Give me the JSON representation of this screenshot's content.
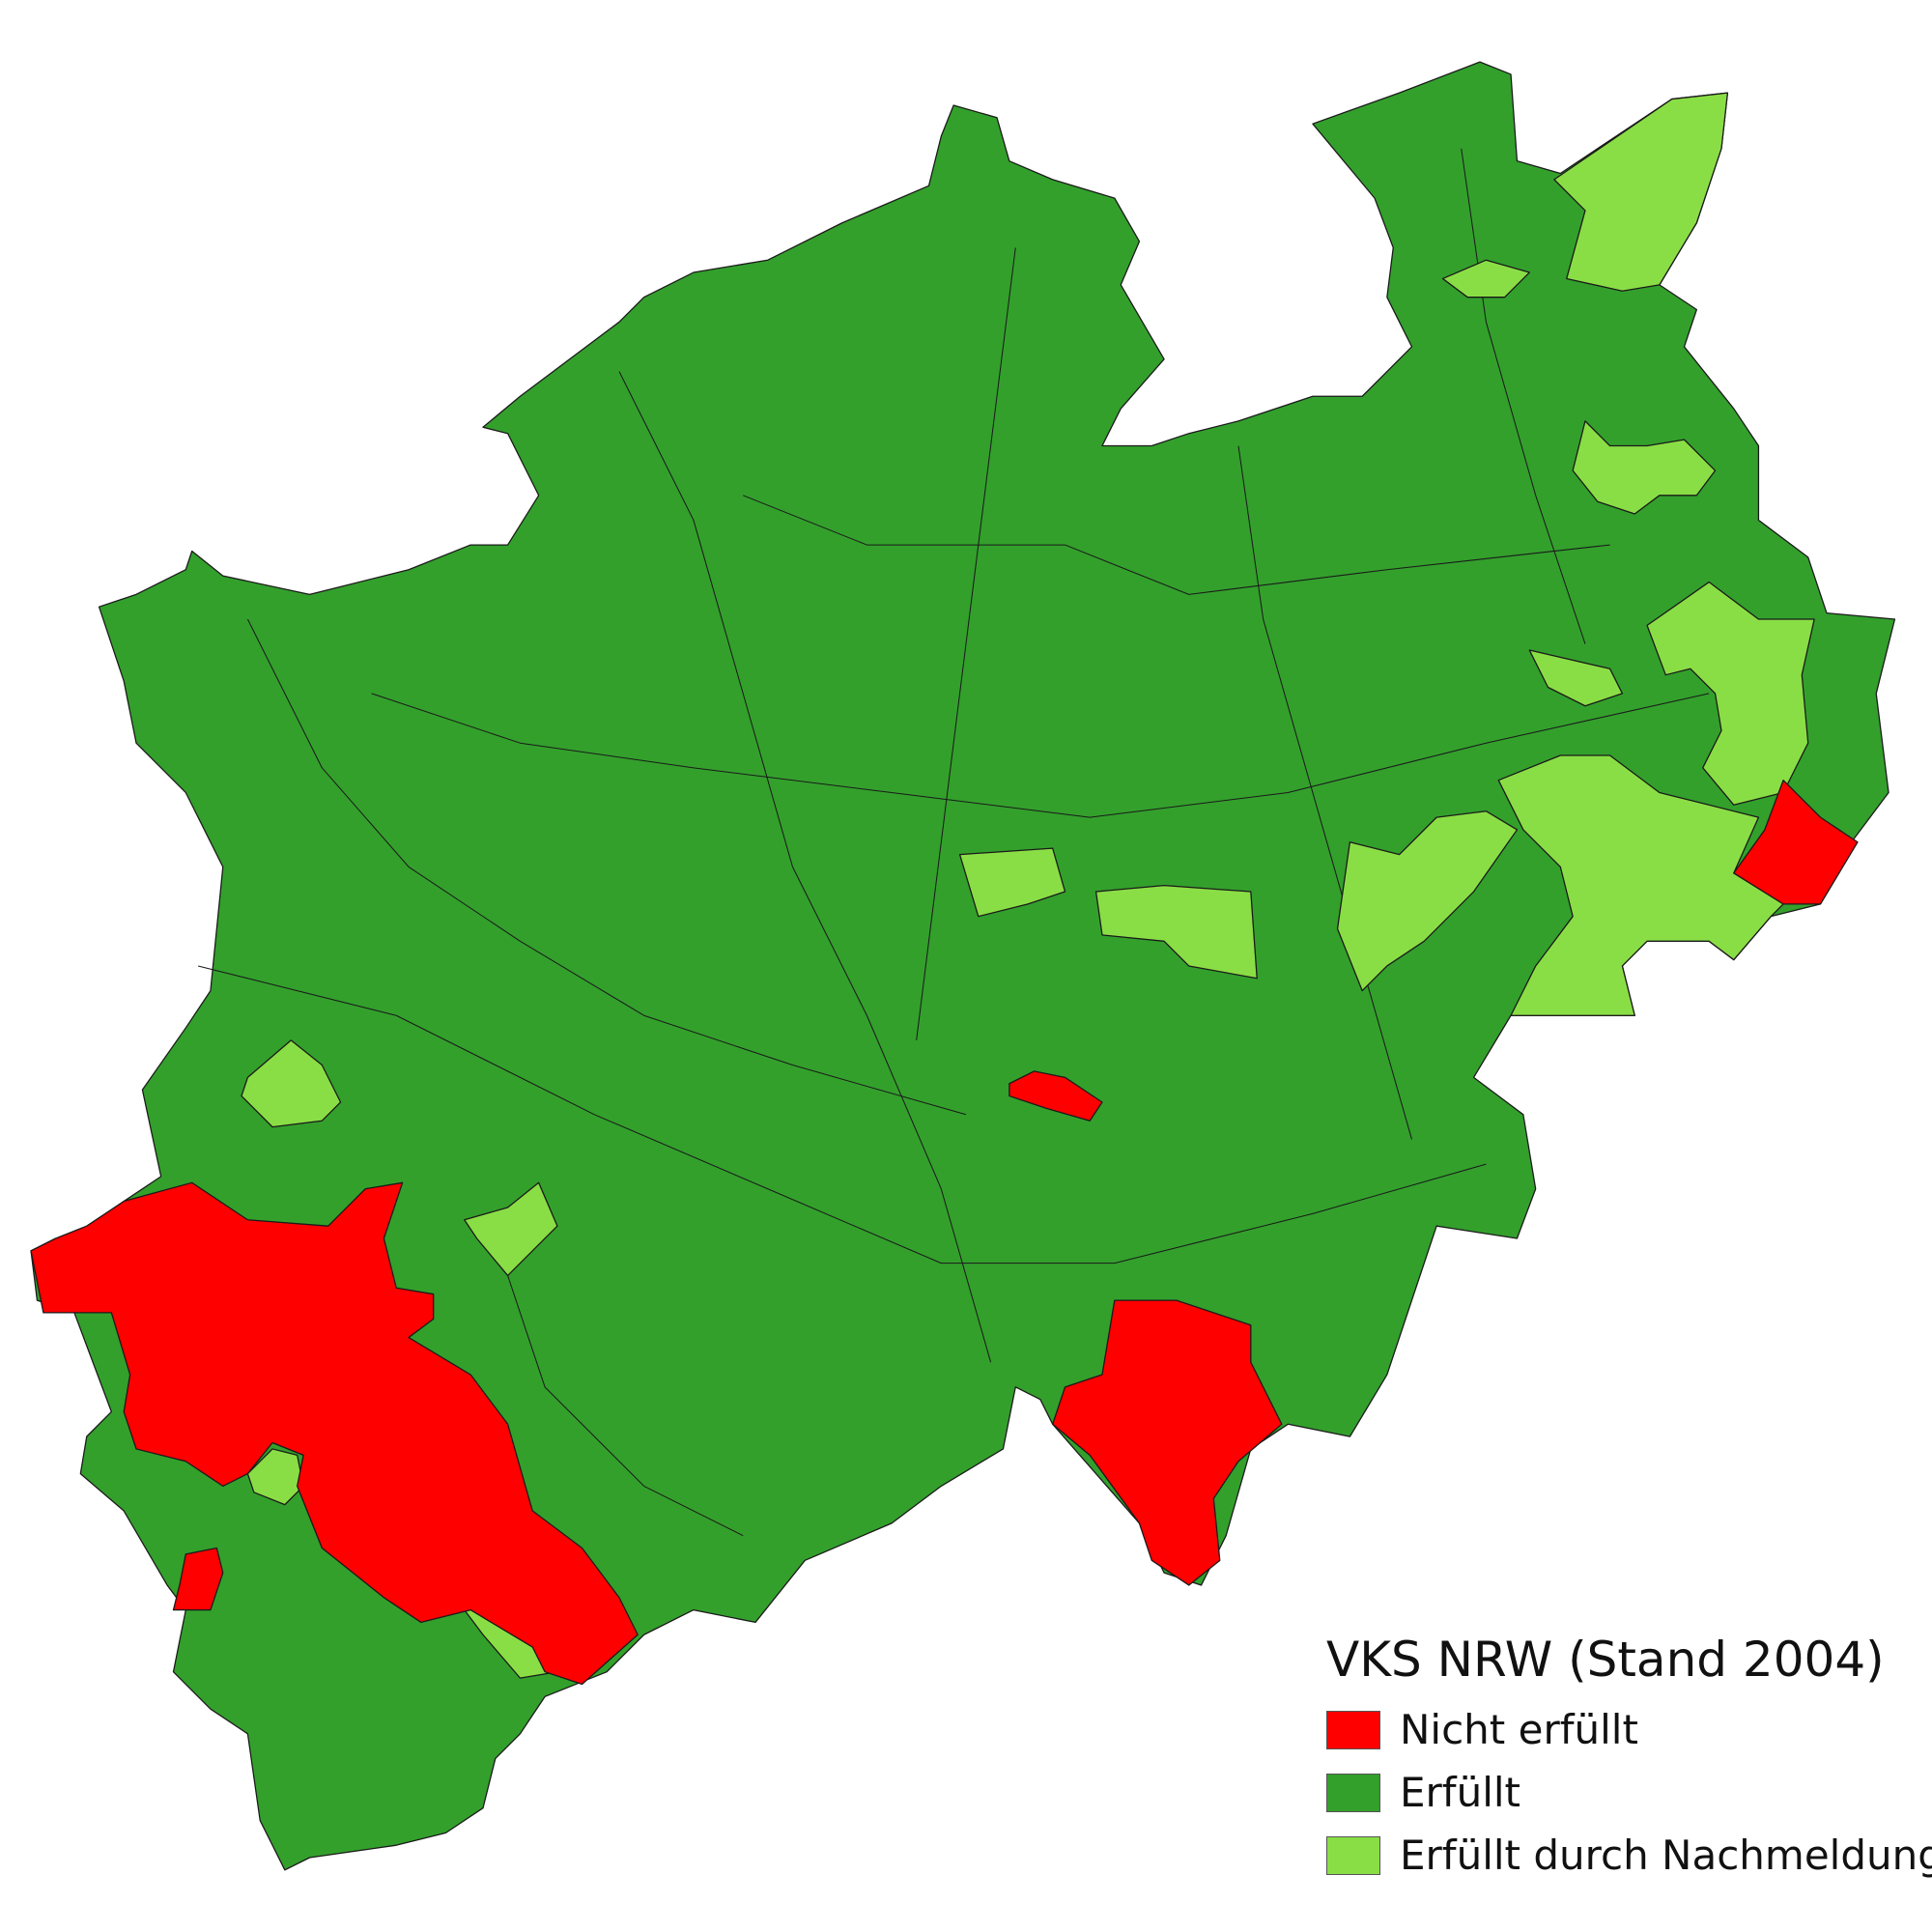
{
  "legend": {
    "title": "VKS NRW (Stand 2004)",
    "items": [
      {
        "label": "Nicht erfüllt",
        "color": "#ff0000"
      },
      {
        "label": "Erfüllt",
        "color": "#33a02c"
      },
      {
        "label": "Erfüllt durch Nachmeldung",
        "color": "#8ade45"
      }
    ]
  },
  "border_color": "#1a1a1a"
}
